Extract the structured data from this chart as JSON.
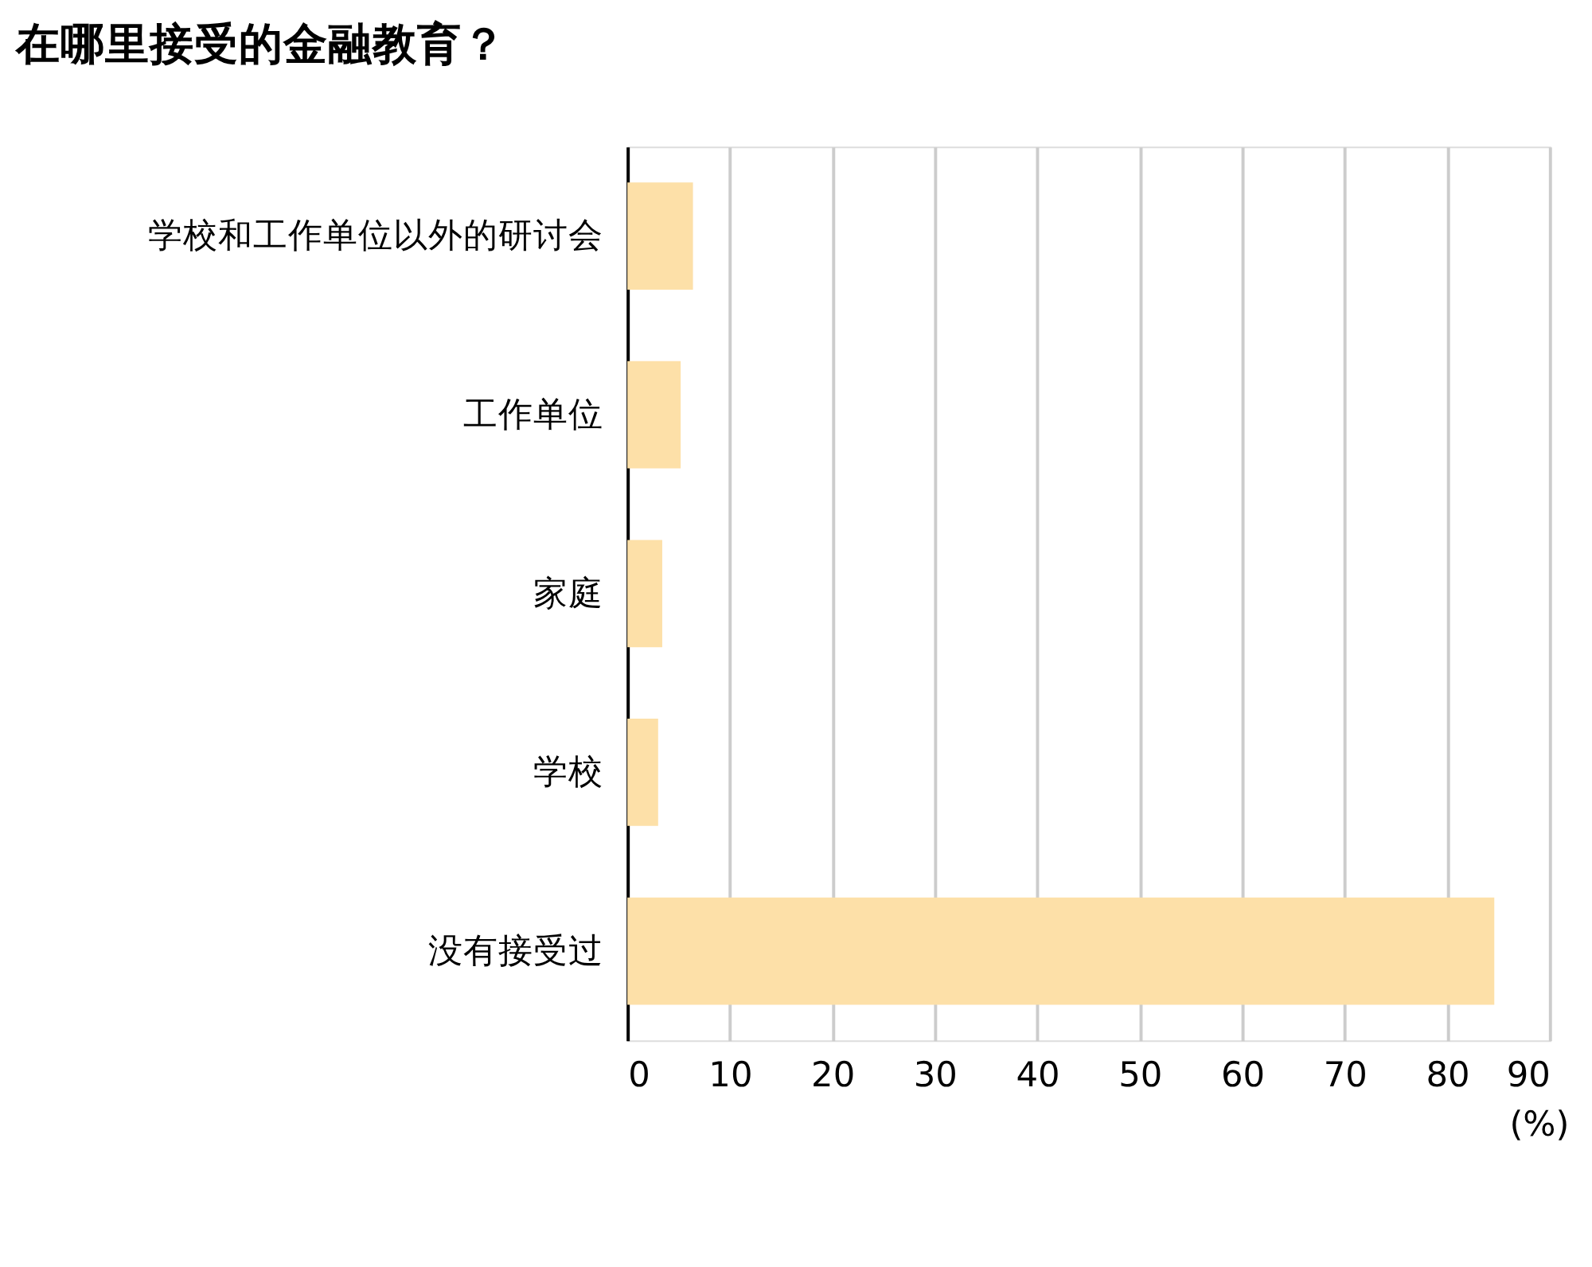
{
  "chart_data": {
    "type": "bar",
    "orientation": "horizontal",
    "title": "在哪里接受的金融教育？",
    "categories": [
      "学校和工作单位以外的研讨会",
      "工作单位",
      "家庭",
      "学校",
      "没有接受过"
    ],
    "values": [
      6.4,
      5.2,
      3.4,
      3.0,
      84.6
    ],
    "color": "#fde0a8",
    "xlabel": "(%)",
    "xlim": [
      0,
      90
    ],
    "xticks": [
      0,
      10,
      20,
      30,
      40,
      50,
      60,
      70,
      80,
      90
    ],
    "grid": "x"
  }
}
